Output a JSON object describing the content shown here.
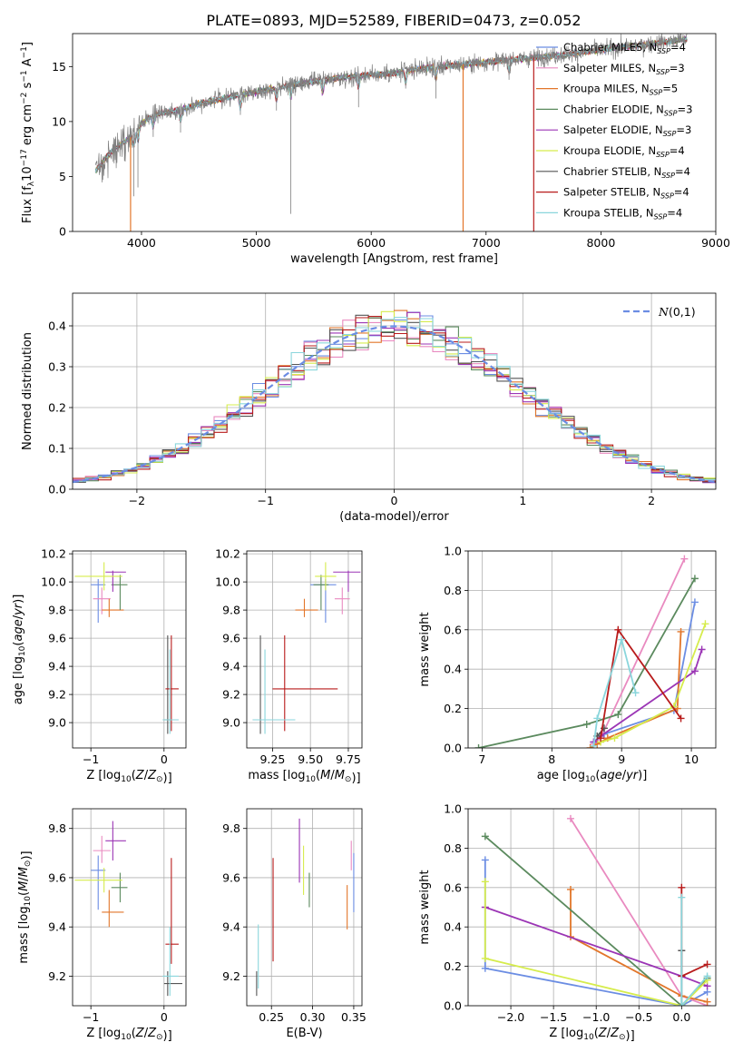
{
  "title": "PLATE=0893, MJD=52589, FIBERID=0473, z=0.052",
  "series": [
    {
      "name": "Chabrier MILES",
      "ssp": "4",
      "color": "#6b8de3"
    },
    {
      "name": "Salpeter MILES",
      "ssp": "3",
      "color": "#e98ac0"
    },
    {
      "name": "Kroupa MILES",
      "ssp": "5",
      "color": "#e2762a"
    },
    {
      "name": "Chabrier ELODIE",
      "ssp": "3",
      "color": "#5b8a5e"
    },
    {
      "name": "Salpeter ELODIE",
      "ssp": "3",
      "color": "#9b35b5"
    },
    {
      "name": "Kroupa ELODIE",
      "ssp": "4",
      "color": "#d6ec4c"
    },
    {
      "name": "Chabrier STELIB",
      "ssp": "4",
      "color": "#555555"
    },
    {
      "name": "Salpeter STELIB",
      "ssp": "4",
      "color": "#b81b1b"
    },
    {
      "name": "Kroupa STELIB",
      "ssp": "4",
      "color": "#8ad6dc"
    }
  ],
  "chart_data": [
    {
      "id": "spectrum",
      "type": "line",
      "xlabel": "wavelength [Angstrom, rest frame]",
      "ylabel": "Flux [f_λ10^-17 erg cm^-2 s^-1 A^-1]",
      "xlim": [
        3400,
        9000
      ],
      "ylim": [
        0,
        18
      ],
      "xticks": [
        4000,
        5000,
        6000,
        7000,
        8000,
        9000
      ],
      "yticks": [
        0,
        5,
        10,
        15
      ],
      "grid": false,
      "legend": "right",
      "data_color": "#808080",
      "continuum": {
        "x": [
          3600,
          3700,
          3800,
          3900,
          4000,
          4100,
          4300,
          4500,
          4800,
          5000,
          5300,
          5600,
          5900,
          6200,
          6500,
          6800,
          7100,
          7400,
          7700,
          8000,
          8300,
          8600,
          8750
        ],
        "y": [
          5.5,
          6.8,
          7.8,
          8.5,
          9.8,
          10.6,
          11.0,
          11.6,
          12.3,
          12.7,
          13.3,
          13.8,
          14.2,
          14.4,
          14.9,
          15.2,
          15.5,
          15.8,
          16.1,
          16.5,
          16.9,
          17.3,
          17.5
        ]
      },
      "absorption_features": [
        {
          "x": 3934,
          "y": 3.2
        },
        {
          "x": 3969,
          "y": 4.0
        },
        {
          "x": 4102,
          "y": 8.6
        },
        {
          "x": 4340,
          "y": 9.0
        },
        {
          "x": 4861,
          "y": 10.6
        },
        {
          "x": 5175,
          "y": 11.0
        },
        {
          "x": 5300,
          "y": 1.6
        },
        {
          "x": 5577,
          "y": 12.5
        },
        {
          "x": 5890,
          "y": 11.3
        },
        {
          "x": 6300,
          "y": 13.0
        },
        {
          "x": 6563,
          "y": 12.1
        },
        {
          "x": 7200,
          "y": 13.8
        }
      ],
      "model_drops": [
        {
          "x": 3905,
          "color": "#e2762a"
        },
        {
          "x": 6800,
          "color": "#e2762a"
        },
        {
          "x": 7415,
          "color": "#b81b1b"
        }
      ]
    },
    {
      "id": "residuals",
      "type": "line",
      "xlabel": "(data-model)/error",
      "ylabel": "Normed distribution",
      "xlim": [
        -2.5,
        2.5
      ],
      "ylim": [
        0,
        0.48
      ],
      "xticks": [
        -2,
        -1,
        0,
        1,
        2
      ],
      "yticks": [
        0.0,
        0.1,
        0.2,
        0.3,
        0.4
      ],
      "grid": true,
      "legend": "top-right",
      "gaussian_label": "N(0,1)",
      "gaussian_color": "#6b8de3",
      "bin_width": 0.1
    },
    {
      "id": "age_vs_Z",
      "type": "scatter",
      "xlabel": "Z [log10(Z/Z⊙)]",
      "ylabel": "age [log10(age/yr)]",
      "xlim": [
        -1.25,
        0.3
      ],
      "ylim": [
        8.82,
        10.22
      ],
      "xticks": [
        -1,
        0
      ],
      "yticks": [
        9.0,
        9.2,
        9.4,
        9.6,
        9.8,
        10.0,
        10.2
      ],
      "grid": true,
      "points": [
        {
          "x": -0.9,
          "y": 9.98,
          "xerr": [
            0.1,
            0.1
          ],
          "yerr": [
            0.27,
            0.04
          ]
        },
        {
          "x": -0.85,
          "y": 9.88,
          "xerr": [
            0.12,
            0.12
          ],
          "yerr": [
            0.11,
            0.08
          ]
        },
        {
          "x": -0.75,
          "y": 9.8,
          "xerr": [
            0.1,
            0.2
          ],
          "yerr": [
            0.05,
            0.08
          ]
        },
        {
          "x": -0.6,
          "y": 9.98,
          "xerr": [
            0.12,
            0.1
          ],
          "yerr": [
            0.18,
            0.07
          ]
        },
        {
          "x": -0.7,
          "y": 10.07,
          "xerr": [
            0.1,
            0.18
          ],
          "yerr": [
            0.14,
            0.01
          ]
        },
        {
          "x": -0.82,
          "y": 10.04,
          "xerr": [
            0.4,
            0.25
          ],
          "yerr": [
            0.1,
            0.1
          ]
        },
        {
          "x": 0.05,
          "y": 9.02,
          "xerr": [
            0.05,
            0.05
          ],
          "yerr": [
            0.1,
            0.6
          ]
        },
        {
          "x": 0.1,
          "y": 9.24,
          "xerr": [
            0.08,
            0.1
          ],
          "yerr": [
            0.3,
            0.38
          ]
        },
        {
          "x": 0.08,
          "y": 9.02,
          "xerr": [
            0.1,
            0.12
          ],
          "yerr": [
            0.1,
            0.5
          ]
        }
      ]
    },
    {
      "id": "age_vs_mass",
      "type": "scatter",
      "xlabel": "mass [log10(M/M⊙)]",
      "ylabel": "",
      "xlim": [
        9.08,
        9.84
      ],
      "ylim": [
        8.82,
        10.22
      ],
      "xticks": [
        9.25,
        9.5,
        9.75
      ],
      "yticks": [
        9.0,
        9.2,
        9.4,
        9.6,
        9.8,
        10.0,
        10.2
      ],
      "grid": true,
      "points": [
        {
          "x": 9.6,
          "y": 9.98,
          "xerr": [
            0.1,
            0.07
          ],
          "yerr": [
            0.27,
            0.04
          ]
        },
        {
          "x": 9.71,
          "y": 9.88,
          "xerr": [
            0.05,
            0.05
          ],
          "yerr": [
            0.11,
            0.08
          ]
        },
        {
          "x": 9.46,
          "y": 9.8,
          "xerr": [
            0.06,
            0.09
          ],
          "yerr": [
            0.05,
            0.08
          ]
        },
        {
          "x": 9.57,
          "y": 9.98,
          "xerr": [
            0.05,
            0.05
          ],
          "yerr": [
            0.18,
            0.07
          ]
        },
        {
          "x": 9.75,
          "y": 10.07,
          "xerr": [
            0.1,
            0.08
          ],
          "yerr": [
            0.14,
            0.01
          ]
        },
        {
          "x": 9.6,
          "y": 10.04,
          "xerr": [
            0.07,
            0.07
          ],
          "yerr": [
            0.1,
            0.1
          ]
        },
        {
          "x": 9.17,
          "y": 9.02,
          "xerr": [
            0.05,
            0.05
          ],
          "yerr": [
            0.1,
            0.6
          ]
        },
        {
          "x": 9.33,
          "y": 9.24,
          "xerr": [
            0.08,
            0.35
          ],
          "yerr": [
            0.3,
            0.38
          ]
        },
        {
          "x": 9.2,
          "y": 9.02,
          "xerr": [
            0.08,
            0.2
          ],
          "yerr": [
            0.1,
            0.5
          ]
        }
      ]
    },
    {
      "id": "weight_vs_age",
      "type": "line",
      "xlabel": "age [log10(age/yr)]",
      "ylabel": "mass weight",
      "xlim": [
        6.8,
        10.35
      ],
      "ylim": [
        0,
        1
      ],
      "xticks": [
        7,
        8,
        9,
        10
      ],
      "yticks": [
        0.0,
        0.2,
        0.4,
        0.6,
        0.8,
        1.0
      ],
      "grid": true,
      "lines": [
        {
          "x": [
            8.6,
            8.75,
            9.75,
            10.05
          ],
          "y": [
            0.03,
            0.07,
            0.19,
            0.74
          ]
        },
        {
          "x": [
            8.6,
            8.7,
            9.9
          ],
          "y": [
            0.02,
            0.05,
            0.96
          ]
        },
        {
          "x": [
            8.55,
            8.65,
            8.8,
            9.8,
            9.85
          ],
          "y": [
            0.0,
            0.02,
            0.05,
            0.2,
            0.59
          ]
        },
        {
          "x": [
            6.95,
            8.5,
            8.95,
            10.05
          ],
          "y": [
            0.0,
            0.12,
            0.17,
            0.86
          ]
        },
        {
          "x": [
            8.6,
            8.7,
            10.05,
            10.15
          ],
          "y": [
            0.03,
            0.06,
            0.39,
            0.5
          ]
        },
        {
          "x": [
            8.7,
            8.9,
            9.75,
            10.2
          ],
          "y": [
            0.03,
            0.05,
            0.21,
            0.63
          ]
        },
        {
          "x": [
            8.65,
            8.75
          ],
          "y": [
            0.06,
            0.1
          ]
        },
        {
          "x": [
            8.7,
            8.95,
            9.85
          ],
          "y": [
            0.05,
            0.6,
            0.15
          ]
        },
        {
          "x": [
            8.6,
            8.65,
            9.0,
            9.2
          ],
          "y": [
            0.01,
            0.15,
            0.55,
            0.28
          ]
        }
      ]
    },
    {
      "id": "mass_vs_Z",
      "type": "scatter",
      "xlabel": "Z [log10(Z/Z⊙)]",
      "ylabel": "mass [log10(M/M⊙)]",
      "xlim": [
        -1.25,
        0.3
      ],
      "ylim": [
        9.08,
        9.88
      ],
      "xticks": [
        -1,
        0
      ],
      "yticks": [
        9.2,
        9.4,
        9.6,
        9.8
      ],
      "grid": true,
      "points": [
        {
          "x": -0.9,
          "y": 9.63,
          "xerr": [
            0.1,
            0.1
          ],
          "yerr": [
            0.16,
            0.06
          ]
        },
        {
          "x": -0.85,
          "y": 9.71,
          "xerr": [
            0.12,
            0.12
          ],
          "yerr": [
            0.05,
            0.06
          ]
        },
        {
          "x": -0.75,
          "y": 9.46,
          "xerr": [
            0.1,
            0.2
          ],
          "yerr": [
            0.06,
            0.09
          ]
        },
        {
          "x": -0.6,
          "y": 9.56,
          "xerr": [
            0.12,
            0.1
          ],
          "yerr": [
            0.06,
            0.06
          ]
        },
        {
          "x": -0.7,
          "y": 9.75,
          "xerr": [
            0.1,
            0.18
          ],
          "yerr": [
            0.08,
            0.08
          ]
        },
        {
          "x": -0.82,
          "y": 9.59,
          "xerr": [
            0.4,
            0.25
          ],
          "yerr": [
            0.05,
            0.05
          ]
        },
        {
          "x": 0.05,
          "y": 9.17,
          "xerr": [
            0.05,
            0.2
          ],
          "yerr": [
            0.05,
            0.05
          ]
        },
        {
          "x": 0.1,
          "y": 9.33,
          "xerr": [
            0.08,
            0.1
          ],
          "yerr": [
            0.08,
            0.35
          ]
        },
        {
          "x": 0.08,
          "y": 9.2,
          "xerr": [
            0.1,
            0.12
          ],
          "yerr": [
            0.08,
            0.2
          ]
        }
      ]
    },
    {
      "id": "mass_vs_ebv",
      "type": "scatter",
      "xlabel": "E(B-V)",
      "ylabel": "",
      "xlim": [
        0.22,
        0.36
      ],
      "ylim": [
        9.08,
        9.88
      ],
      "xticks": [
        0.25,
        0.3,
        0.35
      ],
      "yticks": [
        9.2,
        9.4,
        9.6,
        9.8
      ],
      "grid": true,
      "points": [
        {
          "x": 0.35,
          "y": 9.58,
          "xerr": [
            0,
            0
          ],
          "yerr": [
            0.12,
            0.12
          ]
        },
        {
          "x": 0.347,
          "y": 9.69,
          "xerr": [
            0,
            0
          ],
          "yerr": [
            0.06,
            0.06
          ]
        },
        {
          "x": 0.342,
          "y": 9.48,
          "xerr": [
            0,
            0
          ],
          "yerr": [
            0.09,
            0.09
          ]
        },
        {
          "x": 0.296,
          "y": 9.55,
          "xerr": [
            0,
            0
          ],
          "yerr": [
            0.07,
            0.07
          ]
        },
        {
          "x": 0.284,
          "y": 9.71,
          "xerr": [
            0,
            0
          ],
          "yerr": [
            0.13,
            0.13
          ]
        },
        {
          "x": 0.289,
          "y": 9.63,
          "xerr": [
            0,
            0
          ],
          "yerr": [
            0.1,
            0.1
          ]
        },
        {
          "x": 0.232,
          "y": 9.17,
          "xerr": [
            0,
            0
          ],
          "yerr": [
            0.05,
            0.05
          ]
        },
        {
          "x": 0.252,
          "y": 9.47,
          "xerr": [
            0,
            0
          ],
          "yerr": [
            0.21,
            0.21
          ]
        },
        {
          "x": 0.234,
          "y": 9.28,
          "xerr": [
            0,
            0
          ],
          "yerr": [
            0.13,
            0.13
          ]
        }
      ]
    },
    {
      "id": "weight_vs_Z",
      "type": "line",
      "xlabel": "Z [log10(Z/Z⊙)]",
      "ylabel": "mass weight",
      "xlim": [
        -2.5,
        0.4
      ],
      "ylim": [
        0,
        1
      ],
      "xticks": [
        -2.0,
        -1.5,
        -1.0,
        -0.5,
        0.0
      ],
      "yticks": [
        0.0,
        0.2,
        0.4,
        0.6,
        0.8,
        1.0
      ],
      "grid": true,
      "lines": [
        {
          "x": [
            -2.3,
            -2.3,
            -0.0,
            0.3
          ],
          "y": [
            0.74,
            0.19,
            0.0,
            0.07
          ]
        },
        {
          "x": [
            -1.3,
            0.0,
            0.3
          ],
          "y": [
            0.95,
            0.05,
            0.0
          ]
        },
        {
          "x": [
            -1.3,
            -1.3,
            0.0,
            0.3
          ],
          "y": [
            0.59,
            0.35,
            0.05,
            0.02
          ]
        },
        {
          "x": [
            -2.3,
            0.0,
            0.3
          ],
          "y": [
            0.86,
            0.0,
            0.14
          ]
        },
        {
          "x": [
            -2.3,
            0.0,
            0.3
          ],
          "y": [
            0.5,
            0.15,
            0.1
          ]
        },
        {
          "x": [
            -2.3,
            -2.3,
            0.0,
            0.3
          ],
          "y": [
            0.63,
            0.24,
            0.0,
            0.13
          ]
        },
        {
          "x": [
            0.0,
            0.0
          ],
          "y": [
            0.28,
            0.0
          ]
        },
        {
          "x": [
            0.0,
            0.0,
            0.3
          ],
          "y": [
            0.6,
            0.15,
            0.21
          ]
        },
        {
          "x": [
            0.0,
            0.0,
            0.3
          ],
          "y": [
            0.55,
            0.0,
            0.15
          ]
        }
      ]
    }
  ]
}
